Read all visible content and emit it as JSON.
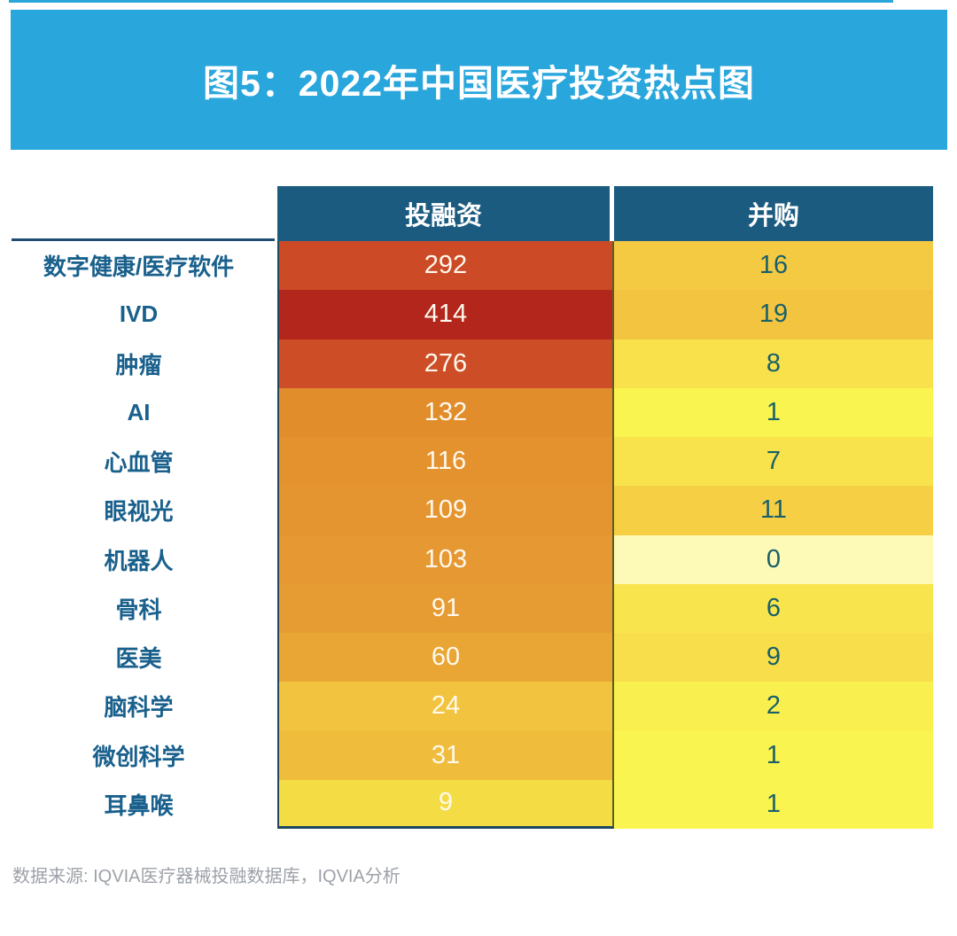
{
  "banner": {
    "title": "图5：2022年中国医疗投资热点图"
  },
  "colors": {
    "banner_bg": "#29A6DC",
    "header_bg": "#1B5B80",
    "label_text": "#19608C",
    "value_text_light": "#FFF9EE",
    "value_text_dark": "#19606A",
    "footer_text": "#9DA2A8",
    "heat_max": "#B2261C",
    "heat_min": "#FCFAB6"
  },
  "chart_data": {
    "type": "heatmap",
    "title": "图5：2022年中国医疗投资热点图",
    "columns": [
      "投融资",
      "并购"
    ],
    "legend_position": "none",
    "grid": false,
    "rows": [
      {
        "label": "数字健康/医疗软件",
        "values": [
          292,
          16
        ],
        "colors": [
          "#CC4B26",
          "#F5CA43"
        ]
      },
      {
        "label": "IVD",
        "values": [
          414,
          19
        ],
        "colors": [
          "#B2261C",
          "#F3C440"
        ]
      },
      {
        "label": "肿瘤",
        "values": [
          276,
          8
        ],
        "colors": [
          "#CD4D27",
          "#F8E14B"
        ]
      },
      {
        "label": "AI",
        "values": [
          132,
          1
        ],
        "colors": [
          "#E28D2C",
          "#FAF450"
        ]
      },
      {
        "label": "心血管",
        "values": [
          116,
          7
        ],
        "colors": [
          "#E4922E",
          "#F8E34C"
        ]
      },
      {
        "label": "眼视光",
        "values": [
          109,
          11
        ],
        "colors": [
          "#E59530",
          "#F6CF45"
        ]
      },
      {
        "label": "机器人",
        "values": [
          103,
          0
        ],
        "colors": [
          "#E69832",
          "#FCFAB6"
        ]
      },
      {
        "label": "骨科",
        "values": [
          91,
          6
        ],
        "colors": [
          "#E79B33",
          "#F8E54D"
        ]
      },
      {
        "label": "医美",
        "values": [
          60,
          9
        ],
        "colors": [
          "#EAA634",
          "#F7DE4A"
        ]
      },
      {
        "label": "脑科学",
        "values": [
          24,
          2
        ],
        "colors": [
          "#F2C33E",
          "#F9F04F"
        ]
      },
      {
        "label": "微创科学",
        "values": [
          31,
          1
        ],
        "colors": [
          "#F0BC3B",
          "#FAF450"
        ]
      },
      {
        "label": "耳鼻喉",
        "values": [
          9,
          1
        ],
        "colors": [
          "#F4DC45",
          "#FAF450"
        ]
      }
    ]
  },
  "footer": {
    "source": "数据来源: IQVIA医疗器械投融数据库，IQVIA分析"
  }
}
